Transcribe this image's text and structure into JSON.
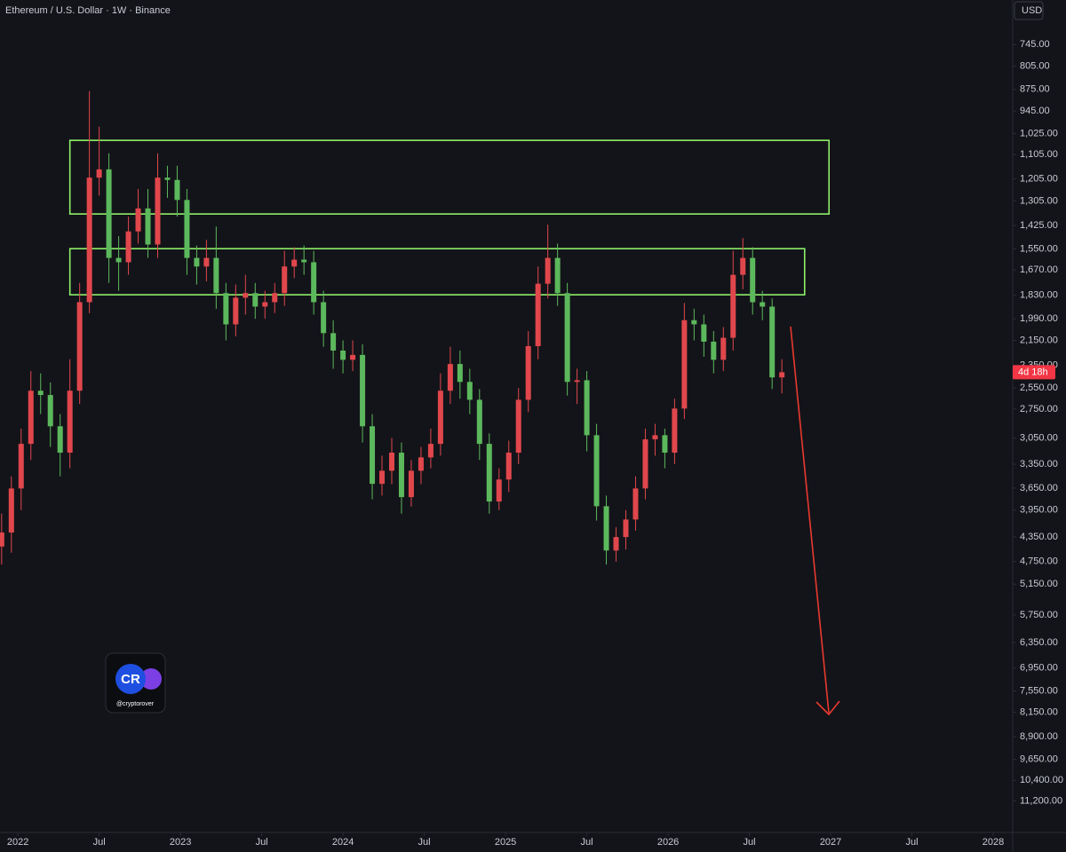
{
  "header": {
    "title": "Ethereum / U.S. Dollar · 1W · Binance",
    "currency_button": "USD"
  },
  "watermark": {
    "handle": "@cryptorover",
    "logo_text": "CR"
  },
  "chart_data": {
    "type": "candlestick",
    "log_scale": true,
    "inverted": true,
    "grid": false,
    "up_color": "#5cb85c",
    "down_color": "#e0474c",
    "xlim": [
      2021.89,
      2028.12
    ],
    "xticks": [
      {
        "value": 2022,
        "label": "2022"
      },
      {
        "value": 2022.5,
        "label": "Jul"
      },
      {
        "value": 2023,
        "label": "2023"
      },
      {
        "value": 2023.5,
        "label": "Jul"
      },
      {
        "value": 2024,
        "label": "2024"
      },
      {
        "value": 2024.5,
        "label": "Jul"
      },
      {
        "value": 2025,
        "label": "2025"
      },
      {
        "value": 2025.5,
        "label": "Jul"
      },
      {
        "value": 2026,
        "label": "2026"
      },
      {
        "value": 2026.5,
        "label": "Jul"
      },
      {
        "value": 2027,
        "label": "2027"
      },
      {
        "value": 2027.5,
        "label": "Jul"
      },
      {
        "value": 2028,
        "label": "2028"
      }
    ],
    "ylim": [
      635,
      12820
    ],
    "yticks": [
      {
        "value": 745,
        "label": "745.00"
      },
      {
        "value": 805,
        "label": "805.00"
      },
      {
        "value": 875,
        "label": "875.00"
      },
      {
        "value": 945,
        "label": "945.00"
      },
      {
        "value": 1025,
        "label": "1,025.00"
      },
      {
        "value": 1105,
        "label": "1,105.00"
      },
      {
        "value": 1205,
        "label": "1,205.00"
      },
      {
        "value": 1305,
        "label": "1,305.00"
      },
      {
        "value": 1425,
        "label": "1,425.00"
      },
      {
        "value": 1550,
        "label": "1,550.00"
      },
      {
        "value": 1670,
        "label": "1,670.00"
      },
      {
        "value": 1830,
        "label": "1,830.00"
      },
      {
        "value": 1990,
        "label": "1,990.00"
      },
      {
        "value": 2150,
        "label": "2,150.00"
      },
      {
        "value": 2350,
        "label": "2,350.00"
      },
      {
        "value": 2550,
        "label": "2,550.00"
      },
      {
        "value": 2750,
        "label": "2,750.00"
      },
      {
        "value": 3050,
        "label": "3,050.00"
      },
      {
        "value": 3350,
        "label": "3,350.00"
      },
      {
        "value": 3650,
        "label": "3,650.00"
      },
      {
        "value": 3950,
        "label": "3,950.00"
      },
      {
        "value": 4350,
        "label": "4,350.00"
      },
      {
        "value": 4750,
        "label": "4,750.00"
      },
      {
        "value": 5150,
        "label": "5,150.00"
      },
      {
        "value": 5750,
        "label": "5,750.00"
      },
      {
        "value": 6350,
        "label": "6,350.00"
      },
      {
        "value": 6950,
        "label": "6,950.00"
      },
      {
        "value": 7550,
        "label": "7,550.00"
      },
      {
        "value": 8150,
        "label": "8,150.00"
      },
      {
        "value": 8900,
        "label": "8,900.00"
      },
      {
        "value": 9650,
        "label": "9,650.00"
      },
      {
        "value": 10400,
        "label": "10,400.00"
      },
      {
        "value": 11200,
        "label": "11,200.00"
      }
    ],
    "x": [
      2021.9,
      2021.96,
      2022.02,
      2022.08,
      2022.14,
      2022.2,
      2022.26,
      2022.32,
      2022.38,
      2022.44,
      2022.5,
      2022.56,
      2022.62,
      2022.68,
      2022.74,
      2022.8,
      2022.86,
      2022.92,
      2022.98,
      2023.04,
      2023.1,
      2023.16,
      2023.22,
      2023.28,
      2023.34,
      2023.4,
      2023.46,
      2023.52,
      2023.58,
      2023.64,
      2023.7,
      2023.76,
      2023.82,
      2023.88,
      2023.94,
      2024,
      2024.06,
      2024.12,
      2024.18,
      2024.24,
      2024.3,
      2024.36,
      2024.42,
      2024.48,
      2024.54,
      2024.6,
      2024.66,
      2024.72,
      2024.78,
      2024.84,
      2024.9,
      2024.96,
      2025.02,
      2025.08,
      2025.14,
      2025.2,
      2025.26,
      2025.32,
      2025.38,
      2025.44,
      2025.5,
      2025.56,
      2025.62,
      2025.68,
      2025.74,
      2025.8,
      2025.86,
      2025.92,
      2025.98,
      2026.04,
      2026.1,
      2026.16,
      2026.22,
      2026.28,
      2026.34,
      2026.4,
      2026.46,
      2026.52,
      2026.58,
      2026.64,
      2026.7
    ],
    "open": [
      4500,
      4280,
      3655,
      3115,
      2575,
      2615,
      2925,
      3215,
      2575,
      1875,
      1200,
      1165,
      1600,
      1625,
      1455,
      1340,
      1525,
      1200,
      1210,
      1300,
      1600,
      1650,
      1600,
      1815,
      2030,
      1845,
      1815,
      1905,
      1875,
      1815,
      1650,
      1610,
      1625,
      1875,
      2095,
      2230,
      2305,
      2265,
      2925,
      3595,
      3430,
      3215,
      3770,
      3430,
      3270,
      3115,
      2575,
      2340,
      2495,
      2660,
      3115,
      3830,
      3540,
      3215,
      2660,
      2195,
      1755,
      1600,
      1815,
      2495,
      2480,
      3020,
      3895,
      4565,
      4350,
      4085,
      3655,
      3065,
      3020,
      3215,
      2745,
      2000,
      2030,
      2160,
      2305,
      2130,
      1700,
      1600,
      1875,
      1905,
      2455
    ],
    "high": [
      4800,
      4600,
      3950,
      3300,
      2800,
      3150,
      3500,
      3400,
      2700,
      1950,
      1280,
      1750,
      1800,
      1700,
      1520,
      1600,
      1600,
      1290,
      1380,
      1700,
      1760,
      1740,
      1920,
      2150,
      2120,
      1960,
      1990,
      1990,
      1950,
      1900,
      1720,
      1700,
      1960,
      2200,
      2380,
      2420,
      2400,
      3100,
      3800,
      3750,
      3600,
      4000,
      3900,
      3600,
      3400,
      3250,
      2700,
      2650,
      2800,
      3300,
      4000,
      3950,
      3700,
      3350,
      2780,
      2300,
      1850,
      1900,
      2620,
      2700,
      3200,
      4100,
      4800,
      4750,
      4550,
      4250,
      3800,
      3250,
      3400,
      3350,
      2850,
      2150,
      2280,
      2420,
      2400,
      2230,
      1790,
      1960,
      2000,
      2560,
      2600
    ],
    "low": [
      4000,
      3500,
      2950,
      2400,
      2420,
      2500,
      2800,
      2300,
      1750,
      880,
      1000,
      1100,
      1480,
      1380,
      1250,
      1250,
      1100,
      1150,
      1150,
      1250,
      1530,
      1500,
      1430,
      1750,
      1760,
      1700,
      1750,
      1800,
      1750,
      1560,
      1540,
      1530,
      1560,
      1800,
      2000,
      2150,
      2150,
      2180,
      2800,
      3250,
      3050,
      3100,
      3300,
      3150,
      2950,
      2420,
      2200,
      2230,
      2380,
      2560,
      3000,
      3400,
      3080,
      2550,
      2080,
      1650,
      1420,
      1520,
      1750,
      2380,
      2400,
      2900,
      3750,
      4200,
      3950,
      3500,
      2950,
      2900,
      2950,
      2650,
      1880,
      1920,
      1960,
      2080,
      2050,
      1560,
      1490,
      1540,
      1800,
      1850,
      2300
    ],
    "close": [
      4280,
      3655,
      3115,
      2575,
      2615,
      2925,
      3215,
      2575,
      1875,
      1200,
      1165,
      1600,
      1625,
      1455,
      1340,
      1525,
      1200,
      1210,
      1300,
      1600,
      1650,
      1600,
      1815,
      2030,
      1845,
      1815,
      1905,
      1875,
      1815,
      1650,
      1610,
      1625,
      1875,
      2095,
      2230,
      2305,
      2265,
      2925,
      3595,
      3430,
      3215,
      3770,
      3430,
      3270,
      3115,
      2575,
      2340,
      2495,
      2660,
      3115,
      3830,
      3540,
      3215,
      2660,
      2195,
      1755,
      1600,
      1815,
      2495,
      2480,
      3020,
      3895,
      4565,
      4350,
      4085,
      3655,
      3065,
      3020,
      3215,
      2745,
      2000,
      2030,
      2160,
      2305,
      2130,
      1700,
      1600,
      1875,
      1905,
      2455,
      2410
    ],
    "countdown": "4d 18h",
    "countdown_color": "#f23645",
    "zones": [
      {
        "x": [
          2022.32,
          2026.99
        ],
        "y": [
          1050,
          1367
        ],
        "color": "#8ef06a"
      },
      {
        "x": [
          2022.32,
          2026.84
        ],
        "y": [
          1548,
          1826
        ],
        "color": "#8ef06a"
      }
    ]
  }
}
